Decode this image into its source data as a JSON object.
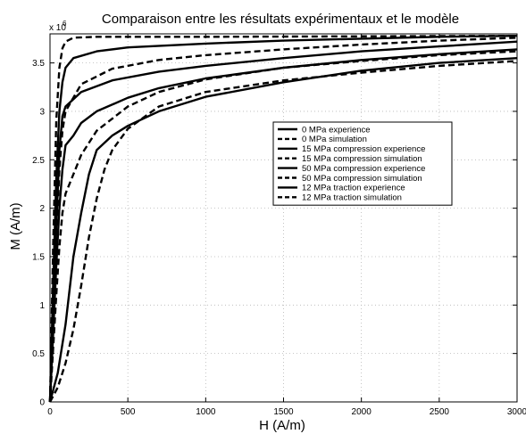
{
  "chart_data": {
    "type": "line",
    "title": "Comparaison entre les résultats expérimentaux et le modèle",
    "xlabel": "H (A/m)",
    "ylabel": "M (A/m)",
    "y_multiplier_label": "x 10",
    "y_multiplier_exponent": "6",
    "xlim": [
      0,
      3000
    ],
    "ylim": [
      0,
      3.8
    ],
    "xticks": [
      0,
      500,
      1000,
      1500,
      2000,
      2500,
      3000
    ],
    "yticks": [
      0,
      0.5,
      1,
      1.5,
      2,
      2.5,
      3,
      3.5
    ],
    "grid": true,
    "legend_position": "center-right",
    "series": [
      {
        "name": "0 MPa experience",
        "style": "solid",
        "color": "#000000",
        "points": [
          [
            0,
            0
          ],
          [
            20,
            1.2
          ],
          [
            40,
            2.3
          ],
          [
            60,
            3.0
          ],
          [
            80,
            3.3
          ],
          [
            100,
            3.45
          ],
          [
            150,
            3.55
          ],
          [
            300,
            3.62
          ],
          [
            500,
            3.66
          ],
          [
            1000,
            3.7
          ],
          [
            1500,
            3.73
          ],
          [
            2000,
            3.75
          ],
          [
            2500,
            3.77
          ],
          [
            3000,
            3.78
          ]
        ]
      },
      {
        "name": "0 MPa simulation",
        "style": "dashed",
        "color": "#000000",
        "points": [
          [
            0,
            0
          ],
          [
            20,
            1.6
          ],
          [
            40,
            2.9
          ],
          [
            60,
            3.45
          ],
          [
            80,
            3.65
          ],
          [
            100,
            3.72
          ],
          [
            150,
            3.76
          ],
          [
            300,
            3.77
          ],
          [
            1000,
            3.77
          ],
          [
            3000,
            3.78
          ]
        ]
      },
      {
        "name": "15 MPa compression experience",
        "style": "solid",
        "color": "#000000",
        "points": [
          [
            0,
            0
          ],
          [
            20,
            0.9
          ],
          [
            40,
            1.8
          ],
          [
            60,
            2.6
          ],
          [
            80,
            2.95
          ],
          [
            100,
            3.05
          ],
          [
            200,
            3.2
          ],
          [
            400,
            3.32
          ],
          [
            700,
            3.41
          ],
          [
            1000,
            3.47
          ],
          [
            1500,
            3.55
          ],
          [
            2000,
            3.62
          ],
          [
            2500,
            3.67
          ],
          [
            3000,
            3.72
          ]
        ]
      },
      {
        "name": "15 MPa compression simulation",
        "style": "dashed",
        "color": "#000000",
        "points": [
          [
            0,
            0
          ],
          [
            20,
            0.9
          ],
          [
            40,
            1.7
          ],
          [
            60,
            2.4
          ],
          [
            80,
            2.8
          ],
          [
            100,
            3.0
          ],
          [
            200,
            3.28
          ],
          [
            400,
            3.44
          ],
          [
            700,
            3.53
          ],
          [
            1000,
            3.58
          ],
          [
            1500,
            3.64
          ],
          [
            2000,
            3.69
          ],
          [
            2500,
            3.73
          ],
          [
            3000,
            3.76
          ]
        ]
      },
      {
        "name": "50 MPa compression experience",
        "style": "solid",
        "color": "#000000",
        "points": [
          [
            0,
            0
          ],
          [
            20,
            0.7
          ],
          [
            40,
            1.4
          ],
          [
            60,
            2.0
          ],
          [
            80,
            2.4
          ],
          [
            100,
            2.65
          ],
          [
            150,
            2.75
          ],
          [
            200,
            2.88
          ],
          [
            300,
            3.0
          ],
          [
            500,
            3.14
          ],
          [
            700,
            3.24
          ],
          [
            1000,
            3.34
          ],
          [
            1500,
            3.45
          ],
          [
            2000,
            3.53
          ],
          [
            2500,
            3.59
          ],
          [
            3000,
            3.64
          ]
        ]
      },
      {
        "name": "50 MPa compression simulation",
        "style": "dashed",
        "color": "#000000",
        "points": [
          [
            0,
            0
          ],
          [
            20,
            0.55
          ],
          [
            40,
            1.1
          ],
          [
            60,
            1.6
          ],
          [
            80,
            1.95
          ],
          [
            100,
            2.15
          ],
          [
            150,
            2.35
          ],
          [
            200,
            2.55
          ],
          [
            300,
            2.8
          ],
          [
            500,
            3.05
          ],
          [
            700,
            3.2
          ],
          [
            1000,
            3.33
          ],
          [
            1500,
            3.45
          ],
          [
            2000,
            3.52
          ],
          [
            2500,
            3.58
          ],
          [
            3000,
            3.62
          ]
        ]
      },
      {
        "name": "12 MPa traction experience",
        "style": "solid",
        "color": "#000000",
        "points": [
          [
            0,
            0
          ],
          [
            50,
            0.3
          ],
          [
            100,
            0.8
          ],
          [
            150,
            1.5
          ],
          [
            200,
            1.95
          ],
          [
            250,
            2.35
          ],
          [
            300,
            2.6
          ],
          [
            400,
            2.75
          ],
          [
            500,
            2.85
          ],
          [
            700,
            3.0
          ],
          [
            1000,
            3.15
          ],
          [
            1500,
            3.3
          ],
          [
            2000,
            3.42
          ],
          [
            2500,
            3.5
          ],
          [
            3000,
            3.55
          ]
        ]
      },
      {
        "name": "12 MPa traction simulation",
        "style": "dashed",
        "color": "#000000",
        "points": [
          [
            0,
            0
          ],
          [
            50,
            0.15
          ],
          [
            100,
            0.4
          ],
          [
            150,
            0.75
          ],
          [
            200,
            1.2
          ],
          [
            250,
            1.7
          ],
          [
            300,
            2.1
          ],
          [
            350,
            2.4
          ],
          [
            400,
            2.6
          ],
          [
            500,
            2.82
          ],
          [
            700,
            3.05
          ],
          [
            1000,
            3.2
          ],
          [
            1500,
            3.32
          ],
          [
            2000,
            3.4
          ],
          [
            2500,
            3.47
          ],
          [
            3000,
            3.52
          ]
        ]
      }
    ]
  }
}
